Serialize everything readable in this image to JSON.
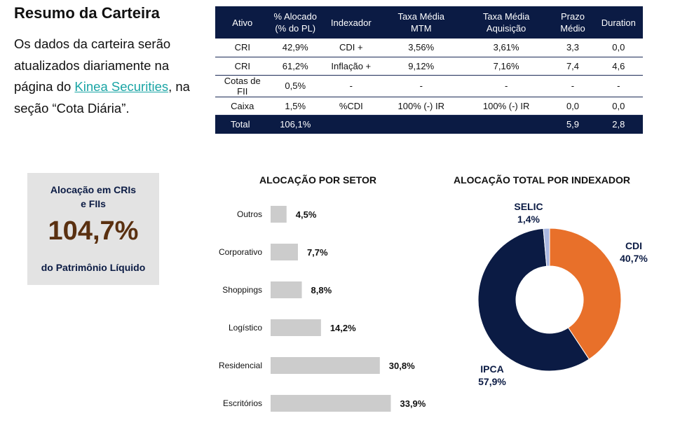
{
  "header": {
    "title": "Resumo da Carteira",
    "desc_part1": "Os dados da carteira serão atualizados diariamente na página do ",
    "link_text": "Kinea Securities",
    "desc_part2": ", na seção “Cota Diária”."
  },
  "table": {
    "headers": [
      [
        "Ativo"
      ],
      [
        "% Alocado",
        "(% do PL)"
      ],
      [
        "Indexador"
      ],
      [
        "Taxa Média",
        "MTM"
      ],
      [
        "Taxa Média",
        "Aquisição"
      ],
      [
        "Prazo",
        "Médio"
      ],
      [
        "Duration"
      ]
    ],
    "rows": [
      [
        "CRI",
        "42,9%",
        "CDI +",
        "3,56%",
        "3,61%",
        "3,3",
        "0,0"
      ],
      [
        "CRI",
        "61,2%",
        "Inflação +",
        "9,12%",
        "7,16%",
        "7,4",
        "4,6"
      ],
      [
        "Cotas de FII",
        "0,5%",
        "-",
        "-",
        "-",
        "-",
        "-"
      ],
      [
        "Caixa",
        "1,5%",
        "%CDI",
        "100% (-) IR",
        "100% (-) IR",
        "0,0",
        "0,0"
      ]
    ],
    "total": [
      "Total",
      "106,1%",
      "",
      "",
      "",
      "5,9",
      "2,8"
    ]
  },
  "kpi": {
    "label_line1": "Alocação em CRIs",
    "label_line2": "e FIIs",
    "value": "104,7%",
    "sub": "do Patrimônio Líquido"
  },
  "chart_data": [
    {
      "type": "bar",
      "orientation": "horizontal",
      "title": "ALOCAÇÃO POR SETOR",
      "categories": [
        "Outros",
        "Corporativo",
        "Shoppings",
        "Logístico",
        "Residencial",
        "Escritórios"
      ],
      "values": [
        4.5,
        7.7,
        8.8,
        14.2,
        30.8,
        33.9
      ],
      "value_labels": [
        "4,5%",
        "7,7%",
        "8,8%",
        "14,2%",
        "30,8%",
        "33,9%"
      ],
      "color": "#cccccc",
      "xlim": [
        0,
        34
      ]
    },
    {
      "type": "pie",
      "variant": "donut",
      "title": "ALOCAÇÃO TOTAL POR INDEXADOR",
      "slices": [
        {
          "label": "CDI",
          "value": 40.7,
          "value_label": "40,7%",
          "color": "#e8702a"
        },
        {
          "label": "IPCA",
          "value": 57.9,
          "value_label": "57,9%",
          "color": "#0b1b44"
        },
        {
          "label": "SELIC",
          "value": 1.4,
          "value_label": "1,4%",
          "color": "#a9b7e0"
        }
      ]
    }
  ]
}
